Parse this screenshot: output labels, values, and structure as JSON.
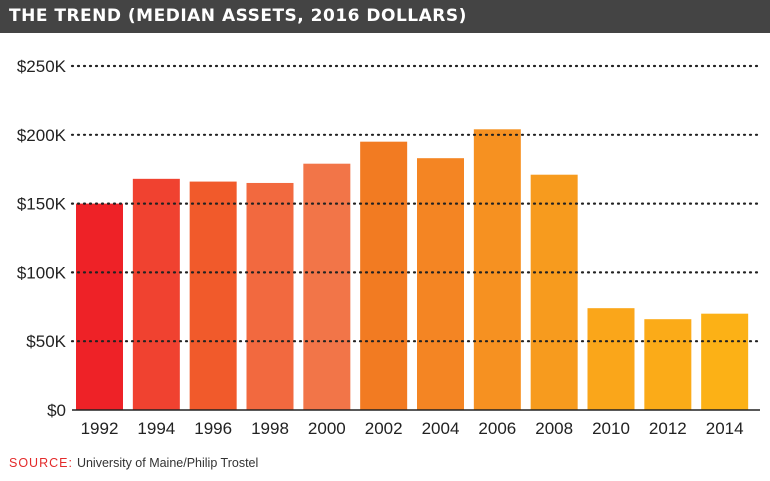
{
  "header": {
    "title": "THE TREND (MEDIAN ASSETS, 2016 DOLLARS)"
  },
  "source": {
    "label": "SOURCE:",
    "text": "University of Maine/Philip Trostel"
  },
  "chart_data": {
    "type": "bar",
    "title": "THE TREND (MEDIAN ASSETS, 2016 DOLLARS)",
    "xlabel": "",
    "ylabel": "",
    "categories": [
      "1992",
      "1994",
      "1996",
      "1998",
      "2000",
      "2002",
      "2004",
      "2006",
      "2008",
      "2010",
      "2012",
      "2014"
    ],
    "values": [
      150000,
      168000,
      166000,
      165000,
      179000,
      195000,
      183000,
      204000,
      171000,
      74000,
      66000,
      70000
    ],
    "ylim": [
      0,
      250000
    ],
    "yticks": [
      0,
      50000,
      100000,
      150000,
      200000,
      250000
    ],
    "ytick_labels": [
      "$0",
      "$50K",
      "$100K",
      "$150K",
      "$200K",
      "$250K"
    ],
    "grid": "horizontal dotted",
    "legend": "none",
    "bar_colors": [
      "#ee2227",
      "#f04230",
      "#f15a2b",
      "#f2693f",
      "#f27548",
      "#f27b22",
      "#f48523",
      "#f69121",
      "#f79b1e",
      "#faa61a",
      "#fbab18",
      "#fcb116"
    ]
  }
}
